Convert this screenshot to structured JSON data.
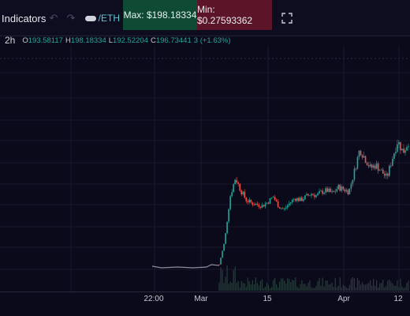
{
  "toolbar": {
    "indicators_label": "Indicators",
    "undo_icon": "undo-icon",
    "redo_icon": "redo-icon",
    "pair_label": "/ETH",
    "max_label": "Max: $198.18334",
    "min_label": "Min: $0.27593362",
    "fullscreen_icon": "fullscreen-icon"
  },
  "ohlc": {
    "timeframe": "2h",
    "o_key": "O",
    "o_val": "193.58117",
    "h_key": "H",
    "h_val": "198.18334",
    "l_key": "L",
    "l_val": "192.52204",
    "c_key": "C",
    "c_val": "196.73441",
    "change": "3 (+1.63%)"
  },
  "xaxis": {
    "labels": [
      "22:00",
      "Mar",
      "15",
      "Apr",
      "12"
    ]
  },
  "colors": {
    "background": "#0b0a1a",
    "up": "#26a69a",
    "down": "#ef5350",
    "max_bg": "#0f4a34",
    "min_bg": "#5c1428",
    "grid": "#1f1e33"
  },
  "chart_data": {
    "type": "line",
    "x_ticks": [
      "22:00",
      "Mar",
      "15",
      "Apr",
      "12"
    ],
    "series": [
      {
        "values": [
          0.28,
          0.28,
          0.28,
          0.28,
          0.28,
          4,
          40,
          110,
          140,
          120,
          105,
          100,
          98,
          96,
          102,
          110,
          95,
          90,
          100,
          108,
          105,
          110,
          115,
          112,
          118,
          120,
          115,
          125,
          122,
          118,
          150,
          185,
          170,
          155,
          160,
          150,
          140,
          170,
          198,
          180,
          196.7
        ]
      }
    ]
  }
}
